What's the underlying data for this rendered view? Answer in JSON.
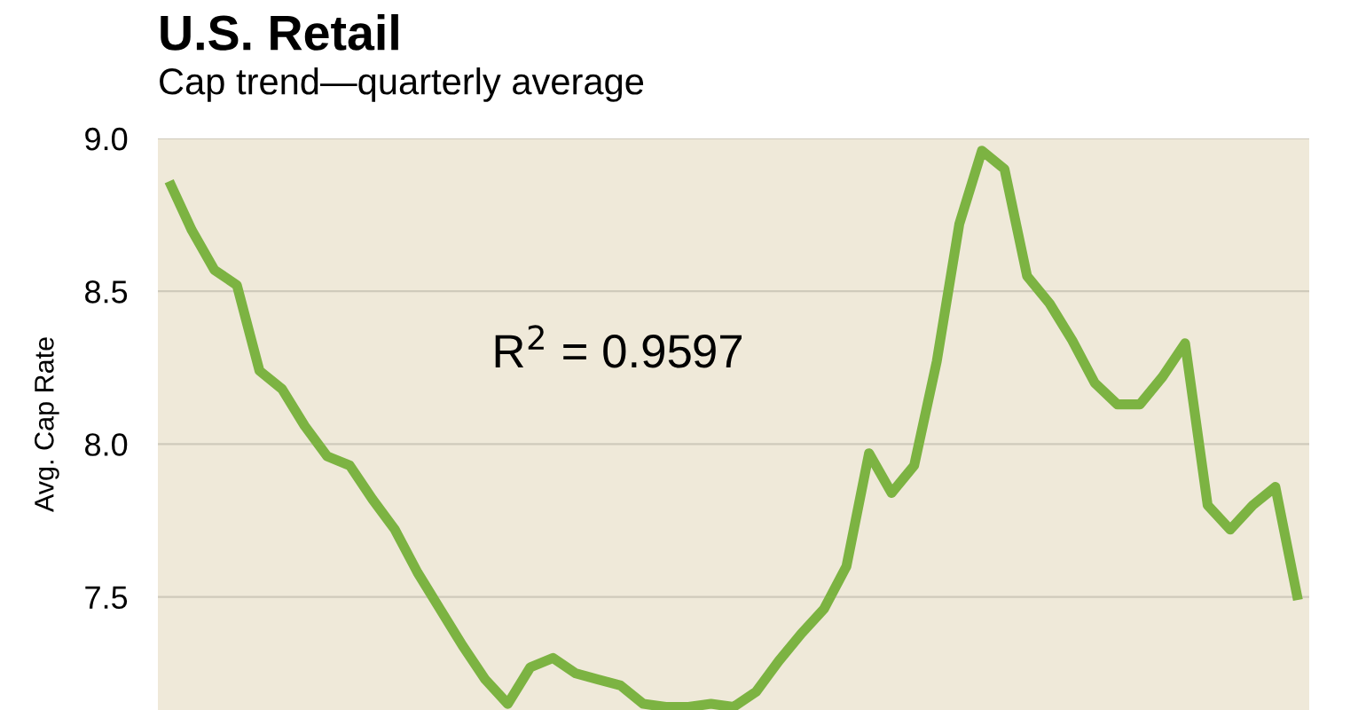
{
  "chart_data": {
    "type": "line",
    "title": "U.S. Retail",
    "subtitle": "Cap trend—quarterly average",
    "ylabel": "Avg. Cap Rate",
    "annotations": [
      "R$^{2}$ = 0.9597"
    ],
    "categories": [
      null,
      null,
      null,
      null,
      null,
      null,
      null,
      null,
      null,
      null,
      null,
      null,
      null,
      null,
      null,
      null,
      null,
      null,
      null,
      null,
      null,
      null,
      null,
      null,
      null,
      null,
      null,
      null,
      null,
      null,
      null,
      null,
      null,
      null,
      null,
      null,
      null,
      null,
      null,
      null,
      null,
      null,
      null,
      null,
      null,
      null,
      null,
      null,
      null,
      null,
      null
    ],
    "series": [
      {
        "color": "#7cb342",
        "values": [
          8.86,
          8.7,
          8.57,
          8.52,
          8.24,
          8.18,
          8.06,
          7.96,
          7.93,
          7.82,
          7.72,
          7.58,
          7.46,
          7.34,
          7.23,
          7.15,
          7.27,
          7.3,
          7.25,
          7.23,
          7.21,
          7.15,
          7.14,
          7.14,
          7.15,
          7.14,
          7.19,
          7.29,
          7.38,
          7.46,
          7.6,
          7.97,
          7.84,
          7.93,
          8.27,
          8.72,
          8.96,
          8.9,
          8.55,
          8.46,
          8.34,
          8.2,
          8.13,
          8.13,
          8.22,
          8.33,
          7.8,
          7.72,
          7.8,
          7.86,
          7.49
        ]
      }
    ],
    "ylim": [
      7.13,
      9.0
    ],
    "yticks": [
      {
        "value": 7.5,
        "label": "7.5"
      },
      {
        "value": 8.0,
        "label": "8.0"
      },
      {
        "value": 8.5,
        "label": "8.5"
      },
      {
        "value": 9.0,
        "label": "9.0"
      }
    ],
    "grid": "y",
    "tick_labels": "y",
    "line_style": "solid",
    "marker": "none"
  }
}
